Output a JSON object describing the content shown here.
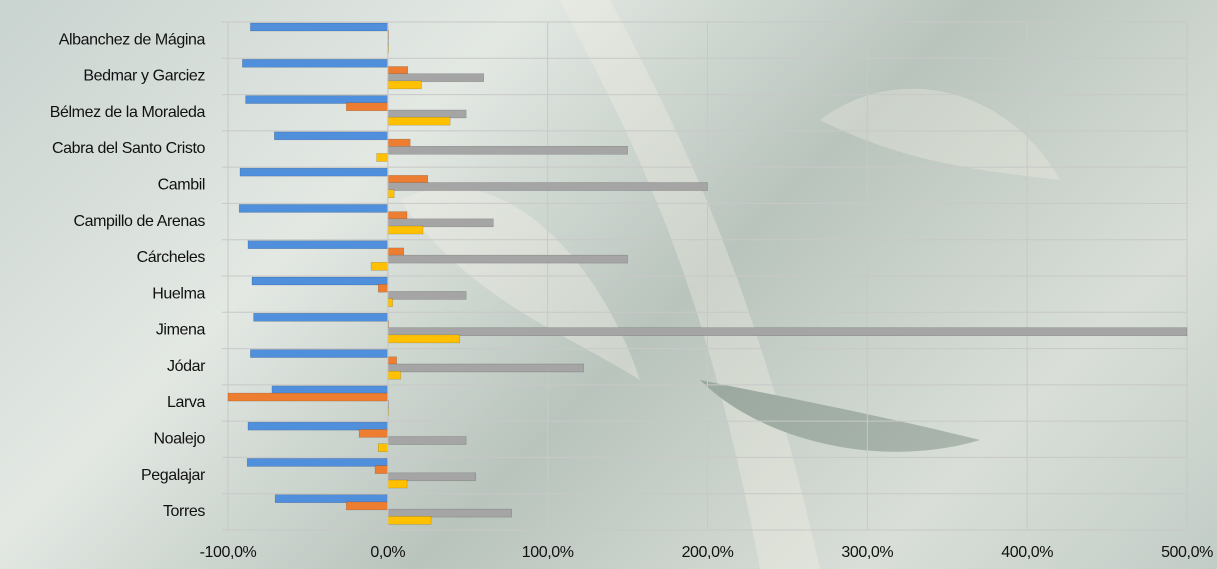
{
  "chart_data": {
    "type": "bar",
    "orientation": "horizontal",
    "categories": [
      "Albanchez de Mágina",
      "Bedmar y Garciez",
      "Bélmez de la Moraleda",
      "Cabra del Santo Cristo",
      "Cambil",
      "Campillo de Arenas",
      "Cárcheles",
      "Huelma",
      "Jimena",
      "Jódar",
      "Larva",
      "Noalejo",
      "Pegalajar",
      "Torres"
    ],
    "series": [
      {
        "color": "#4f8fdc",
        "values": [
          -86,
          -91,
          -89,
          -71,
          -92.5,
          -93,
          -87.5,
          -85,
          -84,
          -86,
          -72.5,
          -87.5,
          -88,
          -70.5
        ]
      },
      {
        "color": "#ed7d31",
        "values": [
          0.5,
          12.5,
          -26,
          14,
          25,
          12,
          10,
          -6,
          0.5,
          5.5,
          -100,
          -18,
          -8,
          -26
        ]
      },
      {
        "color": "#a5a5a5",
        "values": [
          0,
          60,
          49,
          150,
          200,
          66,
          150,
          49,
          500,
          122.5,
          0.5,
          49,
          55,
          77.5
        ]
      },
      {
        "color": "#ffc000",
        "values": [
          0.5,
          21,
          39,
          -7,
          4,
          22,
          -10.5,
          3,
          45,
          8,
          0.5,
          -6,
          12,
          27
        ]
      }
    ],
    "xlim": [
      -100,
      500
    ],
    "xticks": [
      {
        "value": -100,
        "label": "-100,0%"
      },
      {
        "value": 0,
        "label": "0,0%"
      },
      {
        "value": 100,
        "label": "100,0%"
      },
      {
        "value": 200,
        "label": "200,0%"
      },
      {
        "value": 300,
        "label": "300,0%"
      },
      {
        "value": 400,
        "label": "400,0%"
      },
      {
        "value": 500,
        "label": "500,0%"
      }
    ],
    "grid": true
  }
}
